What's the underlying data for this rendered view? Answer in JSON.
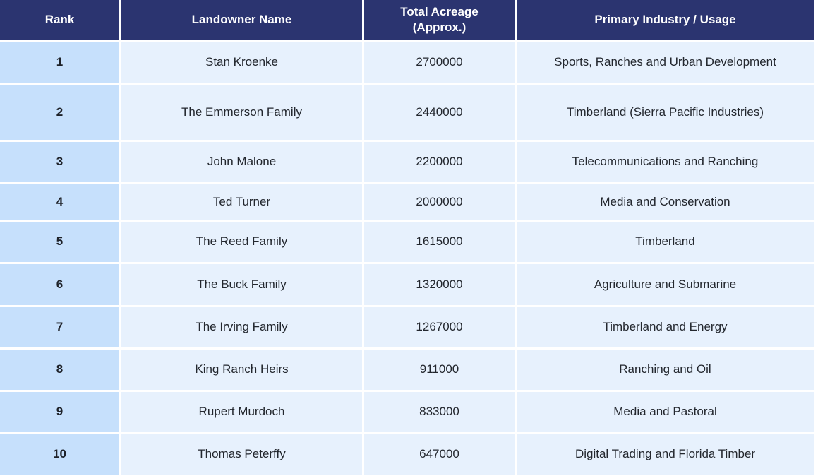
{
  "colors": {
    "header_bg": "#2b3470",
    "header_text": "#ffffff",
    "rank_cell_bg": "#c6e0fc",
    "data_cell_bg": "#e7f1fd",
    "gridline": "#ffffff",
    "body_text": "#23272e"
  },
  "chart_data": {
    "type": "table",
    "title": "",
    "columns": [
      "Rank",
      "Landowner Name",
      "Total Acreage (Approx.)",
      "Primary Industry / Usage"
    ],
    "rows": [
      [
        "1",
        "Stan Kroenke",
        "2700000",
        "Sports, Ranches and Urban Development"
      ],
      [
        "2",
        "The Emmerson Family",
        "2440000",
        "Timberland (Sierra Pacific Industries)"
      ],
      [
        "3",
        "John Malone",
        "2200000",
        "Telecommunications and Ranching"
      ],
      [
        "4",
        "Ted Turner",
        "2000000",
        "Media and Conservation"
      ],
      [
        "5",
        "The Reed Family",
        "1615000",
        "Timberland"
      ],
      [
        "6",
        "The Buck Family",
        "1320000",
        "Agriculture and Submarine"
      ],
      [
        "7",
        "The Irving Family",
        "1267000",
        "Timberland and Energy"
      ],
      [
        "8",
        "King Ranch Heirs",
        "911000",
        "Ranching and Oil"
      ],
      [
        "9",
        "Rupert Murdoch",
        "833000",
        "Media and Pastoral"
      ],
      [
        "10",
        "Thomas Peterffy",
        "647000",
        "Digital Trading and Florida Timber"
      ]
    ]
  }
}
